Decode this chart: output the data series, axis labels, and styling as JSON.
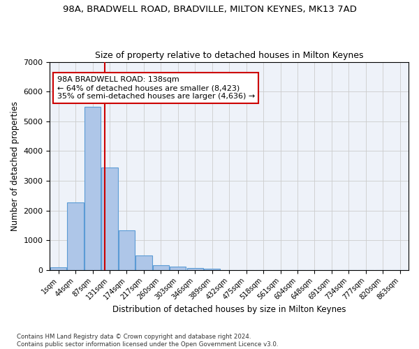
{
  "title1": "98A, BRADWELL ROAD, BRADVILLE, MILTON KEYNES, MK13 7AD",
  "title2": "Size of property relative to detached houses in Milton Keynes",
  "xlabel": "Distribution of detached houses by size in Milton Keynes",
  "ylabel": "Number of detached properties",
  "footnote": "Contains HM Land Registry data © Crown copyright and database right 2024.\nContains public sector information licensed under the Open Government Licence v3.0.",
  "bin_labels": [
    "1sqm",
    "44sqm",
    "87sqm",
    "131sqm",
    "174sqm",
    "217sqm",
    "260sqm",
    "303sqm",
    "346sqm",
    "389sqm",
    "432sqm",
    "475sqm",
    "518sqm",
    "561sqm",
    "604sqm",
    "648sqm",
    "691sqm",
    "734sqm",
    "777sqm",
    "820sqm",
    "863sqm"
  ],
  "bar_values": [
    80,
    2280,
    5480,
    3450,
    1320,
    480,
    160,
    100,
    60,
    30,
    0,
    0,
    0,
    0,
    0,
    0,
    0,
    0,
    0,
    0,
    0
  ],
  "bar_color": "#aec6e8",
  "bar_edge_color": "#5b9bd5",
  "vline_bin_index": 2.72,
  "annotation_text": "98A BRADWELL ROAD: 138sqm\n← 64% of detached houses are smaller (8,423)\n35% of semi-detached houses are larger (4,636) →",
  "annotation_box_color": "#ffffff",
  "annotation_box_edge_color": "#cc0000",
  "vline_color": "#cc0000",
  "ylim": [
    0,
    7000
  ],
  "bg_color": "#eef2f9",
  "grid_color": "#cccccc"
}
